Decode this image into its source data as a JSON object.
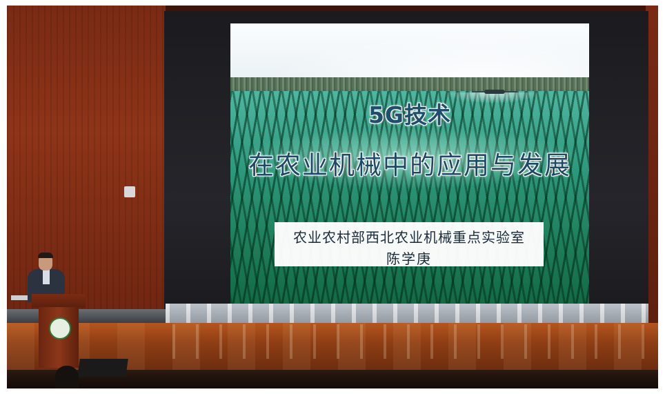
{
  "slide": {
    "title_line1": "5G技术",
    "title_line2": "在农业机械中的应用与发展",
    "organization": "农业农村部西北农业机械重点实验室",
    "presenter": "陈学庚"
  },
  "podium_emblem": "university-logo",
  "colors": {
    "title_text": "#1f4f6e",
    "wall_wood": "#8e3418",
    "screen_frame": "#1b1b1f",
    "field_green": "#2e9a7e"
  }
}
